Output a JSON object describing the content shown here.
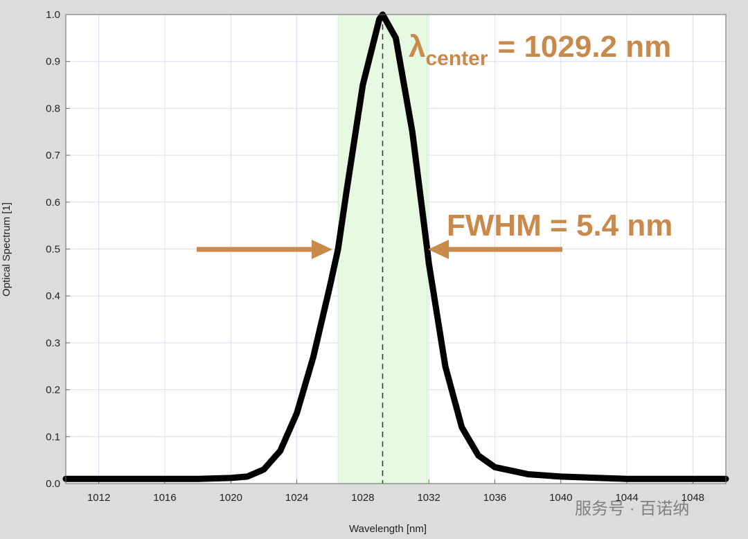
{
  "chart_data": {
    "type": "line",
    "x_label": "Wavelength [nm]",
    "y_label": "Optical Spectrum [1]",
    "x": [
      1010,
      1014,
      1018,
      1020,
      1021,
      1022,
      1023,
      1024,
      1025,
      1026,
      1026.5,
      1027,
      1028,
      1029,
      1029.2,
      1030,
      1031,
      1031.9,
      1032,
      1033,
      1034,
      1035,
      1036,
      1038,
      1040,
      1044,
      1050
    ],
    "series": [
      {
        "color": "#000000",
        "values": [
          0.01,
          0.01,
          0.01,
          0.012,
          0.015,
          0.03,
          0.07,
          0.15,
          0.27,
          0.42,
          0.5,
          0.62,
          0.85,
          0.99,
          1.0,
          0.95,
          0.75,
          0.5,
          0.47,
          0.25,
          0.12,
          0.06,
          0.035,
          0.02,
          0.015,
          0.01,
          0.01
        ]
      }
    ],
    "xlim": [
      1010,
      1050
    ],
    "ylim": [
      0,
      1
    ],
    "xticks": [
      1012,
      1016,
      1020,
      1024,
      1028,
      1032,
      1036,
      1040,
      1044,
      1048
    ],
    "yticks": [
      {
        "value": 0,
        "label": "0.0"
      },
      0.1,
      0.2,
      0.3,
      0.4,
      0.5,
      0.6,
      0.7,
      0.8,
      0.9,
      {
        "value": 1,
        "label": "1.0"
      }
    ],
    "grid": true,
    "fwhm_band": [
      1026.5,
      1031.9
    ],
    "band_color": "#e6f9e1",
    "center": 1029.2,
    "annotations": {
      "lambda": "λ",
      "lambda_sub": "center",
      "center_text": "= 1029.2 nm",
      "fwhm_text": "FWHM = 5.4 nm"
    },
    "watermark": "服务号 · 百诺纳"
  }
}
